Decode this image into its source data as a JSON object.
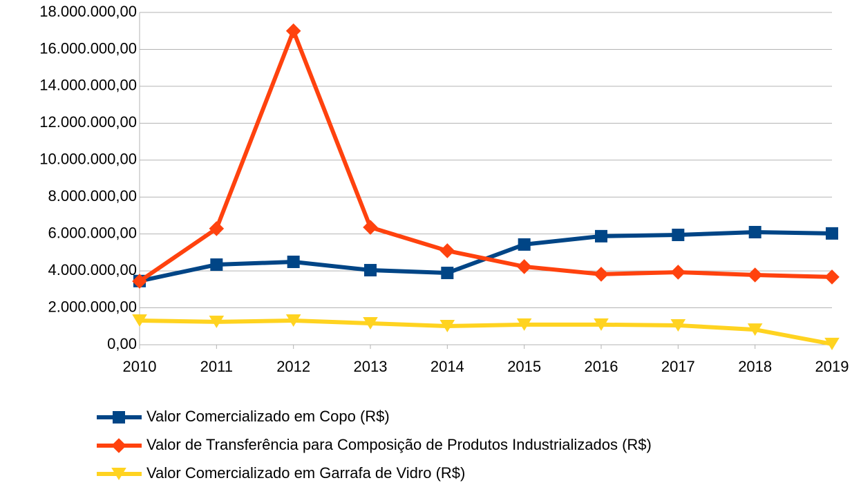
{
  "chart_data": {
    "type": "line",
    "categories": [
      "2010",
      "2011",
      "2012",
      "2013",
      "2014",
      "2015",
      "2016",
      "2017",
      "2018",
      "2019"
    ],
    "series": [
      {
        "name": "Valor Comercializado em Copo (R$)",
        "color": "#004586",
        "marker": "square",
        "values": [
          3450000,
          4340000,
          4490000,
          4040000,
          3890000,
          5430000,
          5880000,
          5950000,
          6100000,
          6030000
        ]
      },
      {
        "name": "Valor de Transferência para Composição de Produtos Industrializados  (R$)",
        "color": "#ff420e",
        "marker": "diamond",
        "values": [
          3440000,
          6290000,
          17000000,
          6360000,
          5090000,
          4230000,
          3820000,
          3930000,
          3780000,
          3670000
        ]
      },
      {
        "name": "Valor Comercializado em Garrafa de Vidro (R$)",
        "color": "#ffd320",
        "marker": "triangle-down",
        "values": [
          1310000,
          1240000,
          1310000,
          1160000,
          1010000,
          1090000,
          1090000,
          1050000,
          820000,
          40000
        ]
      }
    ],
    "ylim": [
      0,
      18000000
    ],
    "yticks": [
      {
        "value": 0,
        "label": "0,00"
      },
      {
        "value": 2000000,
        "label": "2.000.000,00"
      },
      {
        "value": 4000000,
        "label": "4.000.000,00"
      },
      {
        "value": 6000000,
        "label": "6.000.000,00"
      },
      {
        "value": 8000000,
        "label": "8.000.000,00"
      },
      {
        "value": 10000000,
        "label": "10.000.000,00"
      },
      {
        "value": 12000000,
        "label": "12.000.000,00"
      },
      {
        "value": 14000000,
        "label": "14.000.000,00"
      },
      {
        "value": 16000000,
        "label": "16.000.000,00"
      },
      {
        "value": 18000000,
        "label": "18.000.000,00"
      }
    ],
    "grid": true
  }
}
